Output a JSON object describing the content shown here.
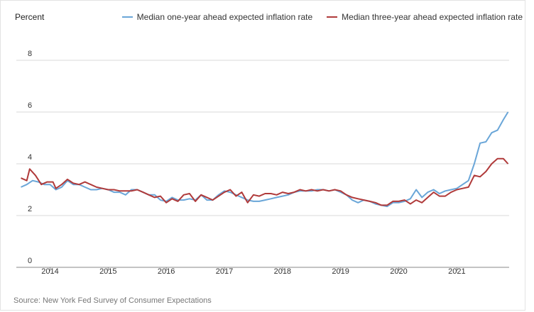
{
  "header": {
    "y_unit_label": "Percent"
  },
  "legend": {
    "items": [
      {
        "label": "Median one-year ahead expected inflation rate",
        "color": "#6aa6d8"
      },
      {
        "label": "Median three-year ahead expected inflation rate",
        "color": "#b03a3a"
      }
    ]
  },
  "footer": {
    "source": "Source: New York Fed Survey of Consumer Expectations"
  },
  "chart_data": {
    "type": "line",
    "title": "",
    "xlabel": "",
    "ylabel": "Percent",
    "ylim": [
      0,
      8
    ],
    "yticks": [
      0,
      2,
      4,
      6,
      8
    ],
    "xlim": [
      2013.42,
      2021.9
    ],
    "xticks": [
      "2014",
      "2015",
      "2016",
      "2017",
      "2018",
      "2019",
      "2020",
      "2021"
    ],
    "grid": "horizontal",
    "legend_position": "top-right",
    "series": [
      {
        "name": "Median one-year ahead expected inflation rate",
        "color": "#6aa6d8",
        "points": [
          [
            2013.5,
            3.1
          ],
          [
            2013.6,
            3.2
          ],
          [
            2013.7,
            3.35
          ],
          [
            2013.8,
            3.3
          ],
          [
            2013.9,
            3.2
          ],
          [
            2014.0,
            3.2
          ],
          [
            2014.1,
            3.0
          ],
          [
            2014.2,
            3.1
          ],
          [
            2014.3,
            3.35
          ],
          [
            2014.4,
            3.2
          ],
          [
            2014.5,
            3.2
          ],
          [
            2014.6,
            3.1
          ],
          [
            2014.7,
            3.0
          ],
          [
            2014.8,
            3.0
          ],
          [
            2014.9,
            3.05
          ],
          [
            2015.0,
            3.0
          ],
          [
            2015.1,
            2.9
          ],
          [
            2015.2,
            2.9
          ],
          [
            2015.3,
            2.8
          ],
          [
            2015.4,
            3.0
          ],
          [
            2015.5,
            3.0
          ],
          [
            2015.6,
            2.9
          ],
          [
            2015.7,
            2.8
          ],
          [
            2015.8,
            2.8
          ],
          [
            2015.9,
            2.6
          ],
          [
            2016.0,
            2.55
          ],
          [
            2016.1,
            2.7
          ],
          [
            2016.2,
            2.6
          ],
          [
            2016.3,
            2.6
          ],
          [
            2016.4,
            2.65
          ],
          [
            2016.5,
            2.6
          ],
          [
            2016.6,
            2.8
          ],
          [
            2016.7,
            2.6
          ],
          [
            2016.8,
            2.6
          ],
          [
            2016.9,
            2.8
          ],
          [
            2017.0,
            2.95
          ],
          [
            2017.1,
            2.9
          ],
          [
            2017.2,
            2.8
          ],
          [
            2017.3,
            2.7
          ],
          [
            2017.4,
            2.6
          ],
          [
            2017.5,
            2.55
          ],
          [
            2017.6,
            2.55
          ],
          [
            2017.7,
            2.6
          ],
          [
            2017.8,
            2.65
          ],
          [
            2017.9,
            2.7
          ],
          [
            2018.0,
            2.75
          ],
          [
            2018.1,
            2.8
          ],
          [
            2018.2,
            2.9
          ],
          [
            2018.3,
            2.95
          ],
          [
            2018.4,
            2.95
          ],
          [
            2018.5,
            2.95
          ],
          [
            2018.6,
            3.0
          ],
          [
            2018.7,
            3.0
          ],
          [
            2018.8,
            2.95
          ],
          [
            2018.9,
            3.0
          ],
          [
            2019.0,
            2.9
          ],
          [
            2019.1,
            2.8
          ],
          [
            2019.2,
            2.6
          ],
          [
            2019.3,
            2.5
          ],
          [
            2019.4,
            2.6
          ],
          [
            2019.5,
            2.55
          ],
          [
            2019.6,
            2.45
          ],
          [
            2019.7,
            2.4
          ],
          [
            2019.8,
            2.35
          ],
          [
            2019.9,
            2.5
          ],
          [
            2020.0,
            2.5
          ],
          [
            2020.1,
            2.55
          ],
          [
            2020.2,
            2.65
          ],
          [
            2020.3,
            3.0
          ],
          [
            2020.4,
            2.7
          ],
          [
            2020.5,
            2.9
          ],
          [
            2020.6,
            3.0
          ],
          [
            2020.7,
            2.85
          ],
          [
            2020.8,
            2.95
          ],
          [
            2020.9,
            3.0
          ],
          [
            2021.0,
            3.05
          ],
          [
            2021.1,
            3.2
          ],
          [
            2021.2,
            3.35
          ],
          [
            2021.3,
            4.0
          ],
          [
            2021.4,
            4.8
          ],
          [
            2021.5,
            4.85
          ],
          [
            2021.6,
            5.2
          ],
          [
            2021.7,
            5.3
          ],
          [
            2021.8,
            5.7
          ],
          [
            2021.88,
            6.0
          ]
        ]
      },
      {
        "name": "Median three-year ahead expected inflation rate",
        "color": "#b03a3a",
        "points": [
          [
            2013.5,
            3.45
          ],
          [
            2013.6,
            3.35
          ],
          [
            2013.65,
            3.8
          ],
          [
            2013.75,
            3.55
          ],
          [
            2013.85,
            3.2
          ],
          [
            2013.95,
            3.3
          ],
          [
            2014.05,
            3.3
          ],
          [
            2014.1,
            3.05
          ],
          [
            2014.2,
            3.2
          ],
          [
            2014.3,
            3.4
          ],
          [
            2014.4,
            3.25
          ],
          [
            2014.5,
            3.2
          ],
          [
            2014.6,
            3.3
          ],
          [
            2014.7,
            3.2
          ],
          [
            2014.8,
            3.1
          ],
          [
            2014.9,
            3.05
          ],
          [
            2015.0,
            3.0
          ],
          [
            2015.1,
            3.0
          ],
          [
            2015.2,
            2.95
          ],
          [
            2015.3,
            2.95
          ],
          [
            2015.4,
            2.95
          ],
          [
            2015.5,
            3.0
          ],
          [
            2015.6,
            2.9
          ],
          [
            2015.7,
            2.8
          ],
          [
            2015.8,
            2.7
          ],
          [
            2015.9,
            2.75
          ],
          [
            2016.0,
            2.5
          ],
          [
            2016.1,
            2.65
          ],
          [
            2016.2,
            2.55
          ],
          [
            2016.3,
            2.8
          ],
          [
            2016.4,
            2.85
          ],
          [
            2016.5,
            2.55
          ],
          [
            2016.6,
            2.8
          ],
          [
            2016.7,
            2.7
          ],
          [
            2016.8,
            2.6
          ],
          [
            2016.9,
            2.75
          ],
          [
            2017.0,
            2.9
          ],
          [
            2017.1,
            3.0
          ],
          [
            2017.2,
            2.75
          ],
          [
            2017.3,
            2.9
          ],
          [
            2017.4,
            2.5
          ],
          [
            2017.5,
            2.8
          ],
          [
            2017.6,
            2.75
          ],
          [
            2017.7,
            2.85
          ],
          [
            2017.8,
            2.85
          ],
          [
            2017.9,
            2.8
          ],
          [
            2018.0,
            2.9
          ],
          [
            2018.1,
            2.85
          ],
          [
            2018.2,
            2.9
          ],
          [
            2018.3,
            3.0
          ],
          [
            2018.4,
            2.95
          ],
          [
            2018.5,
            3.0
          ],
          [
            2018.6,
            2.95
          ],
          [
            2018.7,
            3.0
          ],
          [
            2018.8,
            2.95
          ],
          [
            2018.9,
            3.0
          ],
          [
            2019.0,
            2.95
          ],
          [
            2019.1,
            2.8
          ],
          [
            2019.2,
            2.7
          ],
          [
            2019.3,
            2.65
          ],
          [
            2019.4,
            2.6
          ],
          [
            2019.5,
            2.55
          ],
          [
            2019.6,
            2.5
          ],
          [
            2019.7,
            2.4
          ],
          [
            2019.8,
            2.4
          ],
          [
            2019.9,
            2.55
          ],
          [
            2020.0,
            2.55
          ],
          [
            2020.1,
            2.6
          ],
          [
            2020.2,
            2.45
          ],
          [
            2020.3,
            2.6
          ],
          [
            2020.4,
            2.5
          ],
          [
            2020.5,
            2.7
          ],
          [
            2020.6,
            2.9
          ],
          [
            2020.7,
            2.75
          ],
          [
            2020.8,
            2.75
          ],
          [
            2020.9,
            2.9
          ],
          [
            2021.0,
            3.0
          ],
          [
            2021.1,
            3.05
          ],
          [
            2021.2,
            3.1
          ],
          [
            2021.3,
            3.55
          ],
          [
            2021.4,
            3.5
          ],
          [
            2021.5,
            3.7
          ],
          [
            2021.6,
            4.0
          ],
          [
            2021.7,
            4.2
          ],
          [
            2021.8,
            4.2
          ],
          [
            2021.88,
            4.0
          ]
        ]
      }
    ]
  }
}
